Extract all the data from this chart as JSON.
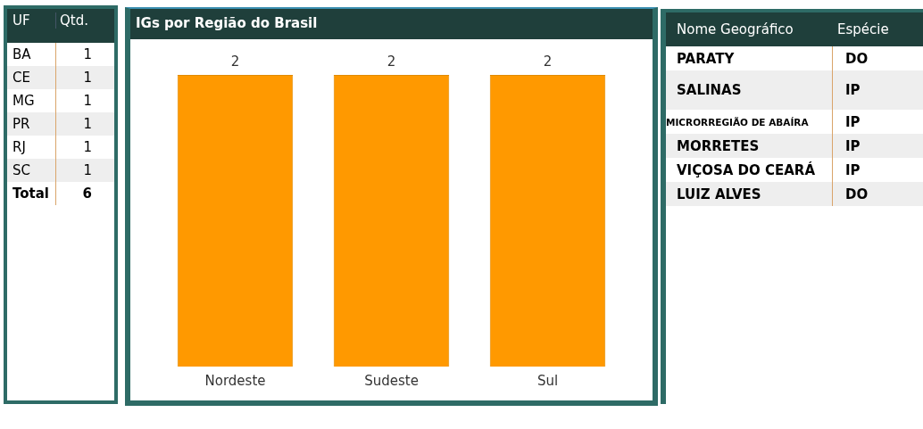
{
  "chart_data": [
    {
      "type": "other",
      "xlabel": "UF",
      "ylabel": "Qtd.",
      "categories": [
        "BA",
        "CE",
        "MG",
        "PR",
        "RJ",
        "SC"
      ],
      "values": [
        1,
        1,
        1,
        1,
        1,
        1
      ],
      "data_labels": true,
      "annotations": [
        "Total",
        "6"
      ]
    },
    {
      "type": "bar",
      "title": "IGs por Região do Brasil",
      "categories": [
        "Nordeste",
        "Sudeste",
        "Sul"
      ],
      "values": [
        2,
        2,
        2
      ],
      "color": "#ff9900",
      "data_labels": true,
      "grid": false,
      "legend": false
    },
    {
      "type": "other",
      "xlabel": "Nome Geográfico",
      "ylabel": "Espécie",
      "categories": [
        "PARATY",
        "SALINAS",
        "MICRORREGIÃO DE ABAÍRA",
        "MORRETES",
        "VIÇOSA DO CEARÁ",
        "LUIZ ALVES"
      ],
      "annotations": [
        "DO",
        "IP",
        "IP",
        "IP",
        "IP",
        "DO"
      ]
    }
  ]
}
